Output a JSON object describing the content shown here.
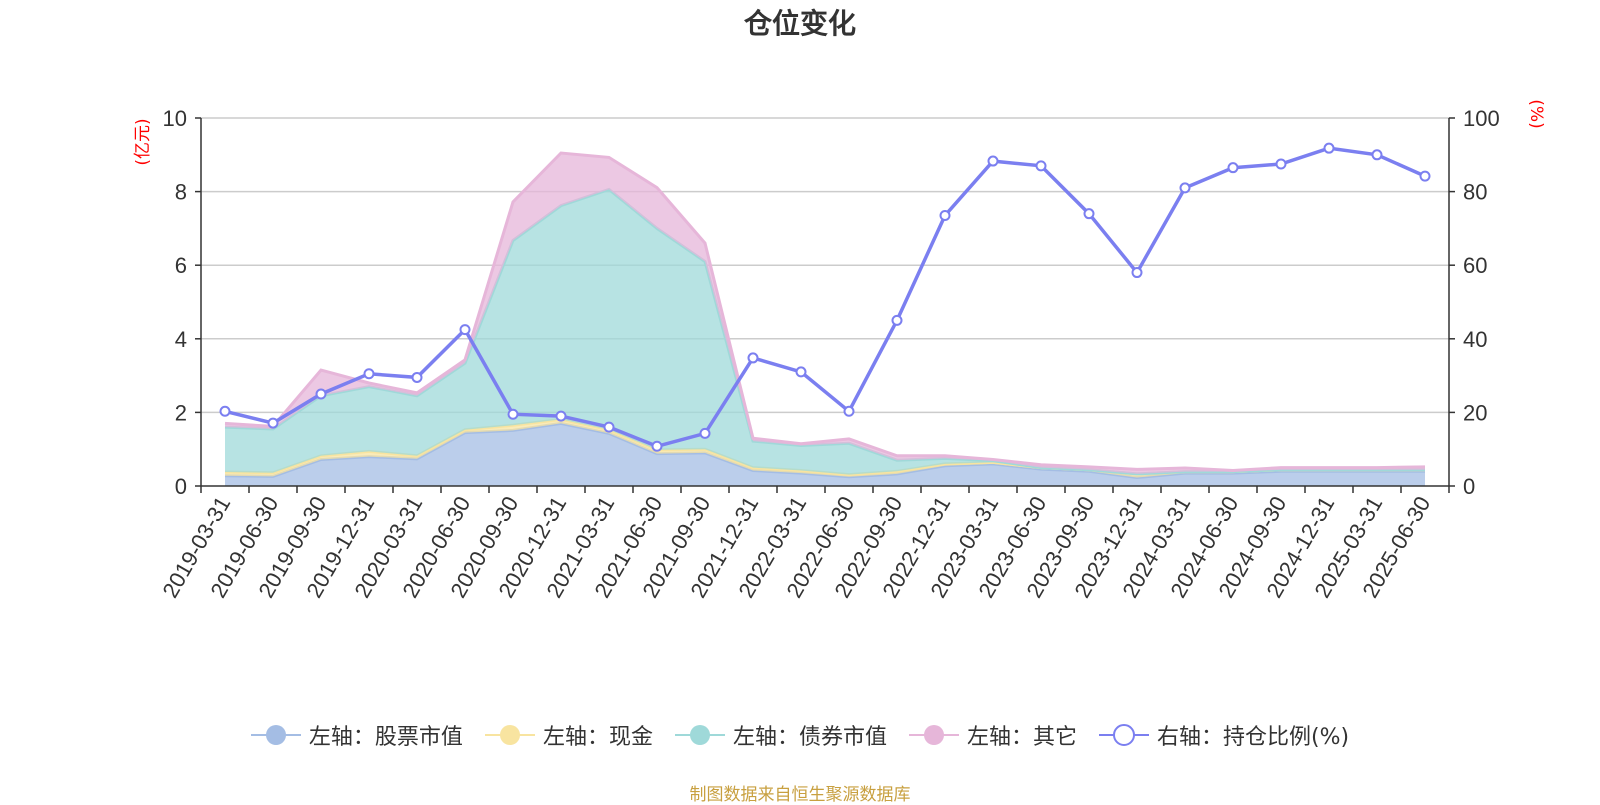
{
  "title": "仓位变化",
  "source_note": "制图数据来自恒生聚源数据库",
  "chart_data": {
    "type": "area",
    "title": "仓位变化",
    "categories": [
      "2019-03-31",
      "2019-06-30",
      "2019-09-30",
      "2019-12-31",
      "2020-03-31",
      "2020-06-30",
      "2020-09-30",
      "2020-12-31",
      "2021-03-31",
      "2021-06-30",
      "2021-09-30",
      "2021-12-31",
      "2022-03-31",
      "2022-06-30",
      "2022-09-30",
      "2022-12-31",
      "2023-03-31",
      "2023-06-30",
      "2023-09-30",
      "2023-12-31",
      "2024-03-31",
      "2024-06-30",
      "2024-09-30",
      "2024-12-31",
      "2025-03-31",
      "2025-06-30"
    ],
    "left_axis": {
      "label": "(亿元)",
      "ylim": [
        0,
        10
      ],
      "ticks": [
        "0",
        "2",
        "4",
        "6",
        "8",
        "10"
      ],
      "label_color": "#ff0000"
    },
    "right_axis": {
      "label": "(%)",
      "ylim": [
        0,
        100
      ],
      "ticks": [
        "0",
        "20",
        "40",
        "60",
        "80",
        "100"
      ],
      "label_color": "#ff0000"
    },
    "grid": true,
    "legend_position": "bottom",
    "stacked": true,
    "series": [
      {
        "name": "左轴：股票市值",
        "axis": "left",
        "kind": "area",
        "color": "#a4bde4",
        "values": [
          0.28,
          0.26,
          0.72,
          0.8,
          0.74,
          1.45,
          1.51,
          1.7,
          1.43,
          0.88,
          0.9,
          0.42,
          0.35,
          0.25,
          0.33,
          0.55,
          0.6,
          0.46,
          0.4,
          0.23,
          0.35,
          0.35,
          0.4,
          0.4,
          0.4,
          0.4
        ]
      },
      {
        "name": "左轴：现金",
        "axis": "left",
        "kind": "area",
        "color": "#f8e4a0",
        "values": [
          0.1,
          0.1,
          0.1,
          0.14,
          0.08,
          0.08,
          0.14,
          0.11,
          0.1,
          0.1,
          0.1,
          0.08,
          0.07,
          0.06,
          0.07,
          0.05,
          0.04,
          0.04,
          0.04,
          0.1,
          0.04,
          0.04,
          0.04,
          0.04,
          0.04,
          0.04
        ]
      },
      {
        "name": "左轴：债券市值",
        "axis": "left",
        "kind": "area",
        "color": "#9fd9d9",
        "values": [
          1.22,
          1.19,
          1.63,
          1.76,
          1.63,
          1.81,
          5.02,
          5.81,
          6.53,
          6.02,
          5.1,
          0.72,
          0.68,
          0.85,
          0.3,
          0.15,
          0.05,
          0.0,
          0.0,
          0.0,
          0.0,
          0.0,
          0.0,
          0.0,
          0.0,
          0.0
        ]
      },
      {
        "name": "左轴：其它",
        "axis": "left",
        "kind": "area",
        "color": "#e6b6d9",
        "values": [
          0.1,
          0.07,
          0.7,
          0.1,
          0.08,
          0.09,
          1.05,
          1.43,
          0.87,
          1.11,
          0.5,
          0.08,
          0.05,
          0.12,
          0.12,
          0.07,
          0.03,
          0.08,
          0.08,
          0.12,
          0.1,
          0.03,
          0.06,
          0.06,
          0.06,
          0.08
        ]
      },
      {
        "name": "右轴：持仓比例(%)",
        "axis": "right",
        "kind": "line",
        "color": "#7b7ff0",
        "values": [
          20.3,
          17.1,
          25.0,
          30.5,
          29.5,
          42.5,
          19.5,
          19.0,
          16.0,
          10.8,
          14.3,
          34.8,
          31.0,
          20.3,
          45.0,
          73.5,
          88.3,
          87.0,
          74.0,
          58.0,
          81.0,
          86.5,
          87.5,
          91.8,
          90.0,
          84.2
        ]
      }
    ]
  }
}
